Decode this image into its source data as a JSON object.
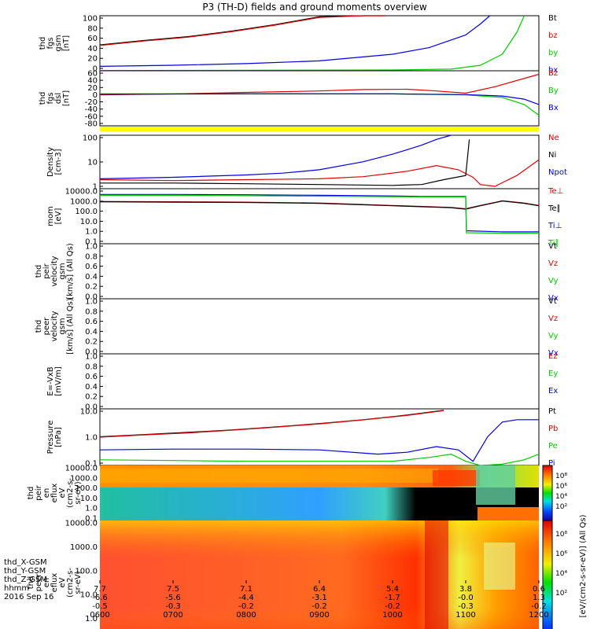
{
  "title": "P3 (TH-D) fields and ground moments overview",
  "colors": {
    "black": "#000000",
    "red": "#e00000",
    "green": "#00cc00",
    "blue": "#0000e0",
    "yellow": "#ffff00"
  },
  "chart_data": {
    "type": "line",
    "panels": [
      {
        "id": "fgs-mag",
        "ylabel_lines": [
          "thd",
          "fgs",
          "gsm",
          "[nT]"
        ],
        "ylim": [
          0,
          100
        ],
        "yticks": [
          "100",
          "80",
          "60",
          "40",
          "20",
          "0"
        ],
        "legend": [
          "Bt",
          "bz",
          "by",
          "bx"
        ],
        "series": [
          {
            "name": "Bt",
            "color": "black",
            "x": [
              600,
              660,
              720,
              780,
              840,
              900,
              960,
              990
            ],
            "y": [
              47,
              55,
              62,
              72,
              84,
              98,
              100,
              100
            ]
          },
          {
            "name": "bz",
            "color": "red",
            "x": [
              600,
              660,
              720,
              780,
              840,
              900,
              960,
              990
            ],
            "y": [
              46,
              54,
              61,
              71,
              83,
              97,
              100,
              100
            ]
          },
          {
            "name": "by",
            "color": "green",
            "x": [
              600,
              800,
              1000,
              1080,
              1120,
              1150,
              1170,
              1180
            ],
            "y": [
              0.5,
              1,
              1.5,
              3,
              10,
              30,
              70,
              100
            ]
          },
          {
            "name": "bx",
            "color": "blue",
            "x": [
              600,
              700,
              800,
              900,
              1000,
              1050,
              1100,
              1120,
              1133
            ],
            "y": [
              8,
              10,
              13,
              18,
              30,
              42,
              65,
              85,
              100
            ]
          }
        ]
      },
      {
        "id": "fgs-dsl",
        "ylabel_lines": [
          "thd",
          "fgs",
          "dsl",
          "[nT]"
        ],
        "ylim": [
          -90,
          65
        ],
        "yticks": [
          "60",
          "40",
          "20",
          "0",
          "-20",
          "-40",
          "-60",
          "-80"
        ],
        "legend": [
          "Bz",
          "By",
          "Bx"
        ],
        "series": [
          {
            "name": "Bz",
            "color": "red",
            "x": [
              600,
              700,
              800,
              900,
              960,
              1020,
              1060,
              1100,
              1140,
              1200
            ],
            "y": [
              -3,
              0,
              4,
              8,
              12,
              13,
              8,
              2,
              20,
              55
            ]
          },
          {
            "name": "By",
            "color": "green",
            "x": [
              600,
              800,
              1000,
              1100,
              1150,
              1180,
              1200
            ],
            "y": [
              0,
              0,
              0,
              -3,
              -10,
              -30,
              -60
            ]
          },
          {
            "name": "Bx",
            "color": "blue",
            "x": [
              600,
              800,
              1000,
              1100,
              1150,
              1180,
              1200
            ],
            "y": [
              -1,
              0,
              0,
              -2,
              -6,
              -15,
              -30
            ]
          }
        ]
      },
      {
        "id": "density",
        "ylabel_lines": [
          "Density",
          "[cm-3]"
        ],
        "ylim_log": [
          0.3,
          200
        ],
        "yticks": [
          "100",
          "10",
          "1"
        ],
        "legend": [
          "Ne",
          "Ni",
          "Npot"
        ],
        "series": [
          {
            "name": "Ne",
            "color": "red",
            "x": [
              600,
              700,
              800,
              900,
              960,
              1020,
              1060,
              1090,
              1110,
              1120,
              1140,
              1170,
              1200
            ],
            "y": [
              0.9,
              0.8,
              0.9,
              1.0,
              1.3,
              2.5,
              5,
              3,
              1.2,
              0.5,
              0.4,
              1.5,
              10
            ]
          },
          {
            "name": "Ni",
            "color": "black",
            "x": [
              600,
              700,
              800,
              900,
              1000,
              1040,
              1070,
              1100,
              1105
            ],
            "y": [
              0.6,
              0.6,
              0.55,
              0.5,
              0.45,
              0.5,
              0.9,
              1.5,
              120
            ]
          },
          {
            "name": "Npot",
            "color": "blue",
            "x": [
              600,
              700,
              800,
              850,
              900,
              960,
              1000,
              1040,
              1060,
              1080
            ],
            "y": [
              1,
              1.2,
              1.6,
              2,
              3,
              8,
              20,
              60,
              120,
              200
            ]
          }
        ]
      },
      {
        "id": "temperature",
        "ylabel_lines": [
          "mom",
          "[eV]"
        ],
        "ylim_log": [
          0.1,
          10000
        ],
        "yticks": [
          "10000.0",
          "1000.0",
          "100.0",
          "10.0",
          "1.0",
          "0.1"
        ],
        "legend": [
          "Te⊥",
          "Te∥",
          "Ti⊥",
          "Ti∥"
        ],
        "series": [
          {
            "name": "Te⊥",
            "color": "red",
            "x": [
              600,
              700,
              800,
              900,
              1000,
              1080,
              1100,
              1120,
              1150,
              1180,
              1200
            ],
            "y": [
              700,
              650,
              600,
              500,
              300,
              200,
              150,
              300,
              800,
              500,
              300
            ]
          },
          {
            "name": "Te∥",
            "color": "black",
            "x": [
              600,
              700,
              800,
              900,
              1000,
              1080,
              1100,
              1120,
              1150,
              1180,
              1200
            ],
            "y": [
              650,
              600,
              560,
              470,
              280,
              190,
              140,
              280,
              750,
              470,
              280
            ]
          },
          {
            "name": "Ti⊥",
            "color": "blue",
            "x": [
              600,
              700,
              800,
              900,
              1000,
              1040,
              1080,
              1100,
              1101,
              1150,
              1200
            ],
            "y": [
              3000,
              3000,
              2800,
              2500,
              2200,
              2000,
              2000,
              2000,
              1.5,
              1.2,
              1.2
            ]
          },
          {
            "name": "Ti∥",
            "color": "green",
            "x": [
              600,
              700,
              800,
              900,
              1000,
              1040,
              1080,
              1100,
              1101,
              1150,
              1200
            ],
            "y": [
              2500,
              2500,
              2300,
              2100,
              1900,
              1800,
              1800,
              1800,
              1,
              0.9,
              0.9
            ]
          }
        ]
      },
      {
        "id": "peir-velocity",
        "ylabel_lines": [
          "thd",
          "peir",
          "velocity",
          "gsm",
          "[km/s] (All Qs)"
        ],
        "ylim": [
          0,
          1
        ],
        "yticks": [
          "1.0",
          "0.8",
          "0.6",
          "0.4",
          "0.2",
          "0.0"
        ],
        "legend": [
          "Vt",
          "Vz",
          "Vy",
          "Vx"
        ],
        "series": []
      },
      {
        "id": "peer-velocity",
        "ylabel_lines": [
          "thd",
          "peer",
          "velocity",
          "gsm",
          "[km/s] (All Qs)"
        ],
        "ylim": [
          0,
          1
        ],
        "yticks": [
          "1.0",
          "0.8",
          "0.6",
          "0.4",
          "0.2",
          "0.0"
        ],
        "legend": [
          "Vt",
          "Vz",
          "Vy",
          "Vx"
        ],
        "series": []
      },
      {
        "id": "efield",
        "ylabel_lines": [
          "E=-VxB",
          "[mV/m]"
        ],
        "ylim": [
          0,
          1
        ],
        "yticks": [
          "1.0",
          "0.8",
          "0.6",
          "0.4",
          "0.2",
          "0.0"
        ],
        "legend": [
          "Ez",
          "Ey",
          "Ex"
        ],
        "series": []
      },
      {
        "id": "pressure",
        "ylabel_lines": [
          "Pressure",
          "[nPa]"
        ],
        "ylim_log": [
          0.03,
          30
        ],
        "yticks": [
          "10.0",
          "1.0",
          "0.1"
        ],
        "legend": [
          "Pt",
          "Pb",
          "Pe",
          "Pi"
        ],
        "series": [
          {
            "name": "Pt",
            "color": "black",
            "x": [
              600,
              660,
              720,
              780,
              840,
              900,
              960,
              1020,
              1070
            ],
            "y": [
              1.0,
              1.3,
              1.7,
              2.3,
              3.3,
              5,
              8,
              14,
              25
            ]
          },
          {
            "name": "Pb",
            "color": "red",
            "x": [
              600,
              660,
              720,
              780,
              840,
              900,
              960,
              1020,
              1070
            ],
            "y": [
              0.95,
              1.25,
              1.6,
              2.2,
              3.2,
              4.8,
              7.8,
              13.5,
              24
            ]
          },
          {
            "name": "Pe",
            "color": "green",
            "x": [
              600,
              700,
              800,
              900,
              1000,
              1050,
              1080,
              1100,
              1120,
              1150,
              1180,
              1200
            ],
            "y": [
              0.06,
              0.055,
              0.05,
              0.05,
              0.05,
              0.08,
              0.12,
              0.05,
              0.03,
              0.035,
              0.06,
              0.12
            ]
          },
          {
            "name": "Pi",
            "color": "blue",
            "x": [
              600,
              700,
              800,
              900,
              980,
              1020,
              1060,
              1090,
              1110,
              1130,
              1150,
              1170,
              1200
            ],
            "y": [
              0.2,
              0.22,
              0.22,
              0.2,
              0.12,
              0.15,
              0.3,
              0.2,
              0.05,
              1.0,
              6,
              8,
              8
            ]
          }
        ]
      },
      {
        "id": "peir-spec",
        "ylabel_lines": [
          "thd",
          "peir",
          "en",
          "eflux",
          "eV",
          "(cm2-s-",
          "sr-eV)"
        ],
        "yticks": [
          "10000.0",
          "1000.0",
          "100.0",
          "10.0",
          "1.0",
          "0.1"
        ],
        "type": "heatmap"
      },
      {
        "id": "peer-spec",
        "ylabel_lines": [
          "thd",
          "peer",
          "en",
          "eflux",
          "eV",
          "(cm2-s-",
          "sr-eV)"
        ],
        "yticks": [
          "10000.0",
          "1000.0",
          "100.0",
          "10.0",
          "1.0",
          "0.1"
        ],
        "type": "heatmap"
      }
    ],
    "colorbar": {
      "label": "[eV/(cm2-s-sr-eV)] (All Qs)",
      "ticks_top": [
        "10⁸",
        "10⁶",
        "10⁴",
        "10²"
      ],
      "ticks_bottom": [
        "10⁸",
        "10⁶",
        "10⁴",
        "10²"
      ]
    },
    "xaxis": {
      "row_labels": [
        "thd_X-GSM",
        "thd_Y-GSM",
        "thd_Z-GSM",
        "hhmm",
        "2016 Sep 16"
      ],
      "xlim": [
        600,
        1200
      ],
      "ticks": [
        {
          "x": 600,
          "xv": "7.7",
          "yv": "-6.6",
          "zv": "-0.5",
          "hhmm": "0600"
        },
        {
          "x": 700,
          "xv": "7.5",
          "yv": "-5.6",
          "zv": "-0.3",
          "hhmm": "0700"
        },
        {
          "x": 800,
          "xv": "7.1",
          "yv": "-4.4",
          "zv": "-0.2",
          "hhmm": "0800"
        },
        {
          "x": 900,
          "xv": "6.4",
          "yv": "-3.1",
          "zv": "-0.2",
          "hhmm": "0900"
        },
        {
          "x": 1000,
          "xv": "5.4",
          "yv": "-1.7",
          "zv": "-0.2",
          "hhmm": "1000"
        },
        {
          "x": 1100,
          "xv": "3.8",
          "yv": "-0.0",
          "zv": "-0.3",
          "hhmm": "1100"
        },
        {
          "x": 1200,
          "xv": "0.6",
          "yv": "1.3",
          "zv": "-0.2",
          "hhmm": "1200"
        }
      ]
    }
  }
}
